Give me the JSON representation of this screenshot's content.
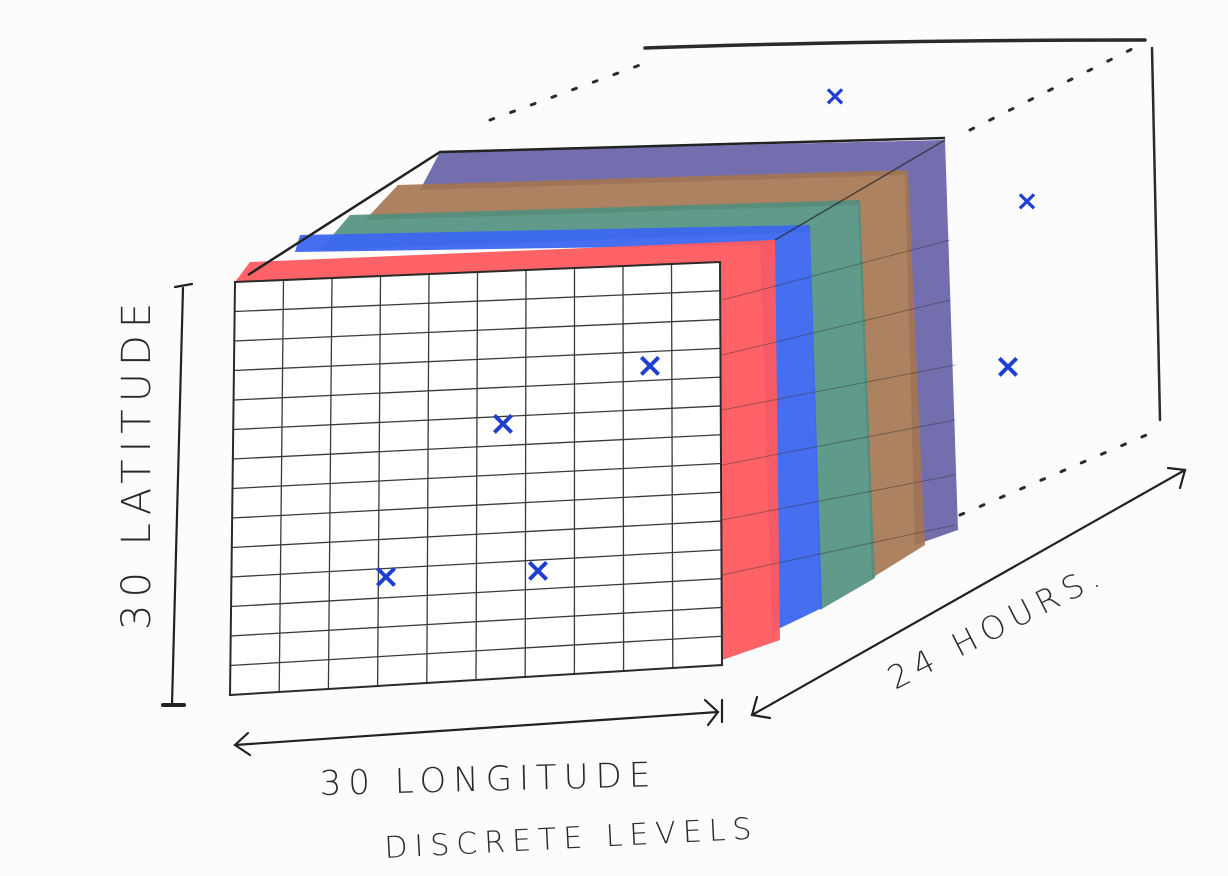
{
  "diagram": {
    "labels": {
      "latitude": "30 LATITUDE",
      "longitude": "30 LONGITUDE",
      "levels": "DISCRETE LEVELS",
      "hours": "24 HOURS."
    },
    "layer_colors": [
      "#ff5a5f",
      "#3b66f0",
      "#4f8f7e",
      "#a4744f",
      "#5a55a0"
    ],
    "marker_color": "#1f3fd0",
    "grid_color": "#3a3a3a",
    "marker_symbol": "×"
  }
}
